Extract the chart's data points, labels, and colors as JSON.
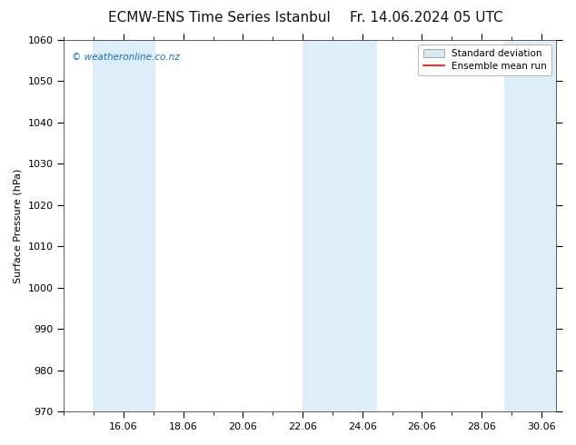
{
  "title_left": "ECMW-ENS Time Series Istanbul",
  "title_right": "Fr. 14.06.2024 05 UTC",
  "ylabel": "Surface Pressure (hPa)",
  "ylim": [
    970,
    1060
  ],
  "yticks": [
    970,
    980,
    990,
    1000,
    1010,
    1020,
    1030,
    1040,
    1050,
    1060
  ],
  "xlim_start": 14.0,
  "xlim_end": 30.5,
  "major_xtick_positions": [
    16.0,
    18.0,
    20.0,
    22.0,
    24.0,
    26.0,
    28.0,
    30.0
  ],
  "major_xtick_labels": [
    "16.06",
    "18.06",
    "20.06",
    "22.06",
    "24.06",
    "26.06",
    "28.06",
    "30.06"
  ],
  "minor_xtick_positions": [
    14,
    15,
    16,
    17,
    18,
    19,
    20,
    21,
    22,
    23,
    24,
    25,
    26,
    27,
    28,
    29,
    30
  ],
  "background_color": "#ffffff",
  "plot_bg_color": "#ffffff",
  "shaded_regions": [
    {
      "x_start": 14.95,
      "x_end": 17.05,
      "color": "#ddeef8"
    },
    {
      "x_start": 22.0,
      "x_end": 24.5,
      "color": "#ddeef8"
    },
    {
      "x_start": 28.75,
      "x_end": 30.5,
      "color": "#ddeef8"
    }
  ],
  "mean_color": "#ff0000",
  "watermark_text": "© weatheronline.co.nz",
  "watermark_color": "#1a6eb5",
  "legend_std_facecolor": "#d8e8f0",
  "legend_std_edgecolor": "#aaaaaa",
  "legend_mean_color": "#ff0000",
  "title_fontsize": 11,
  "ylabel_fontsize": 8,
  "tick_fontsize": 8,
  "legend_fontsize": 7.5
}
